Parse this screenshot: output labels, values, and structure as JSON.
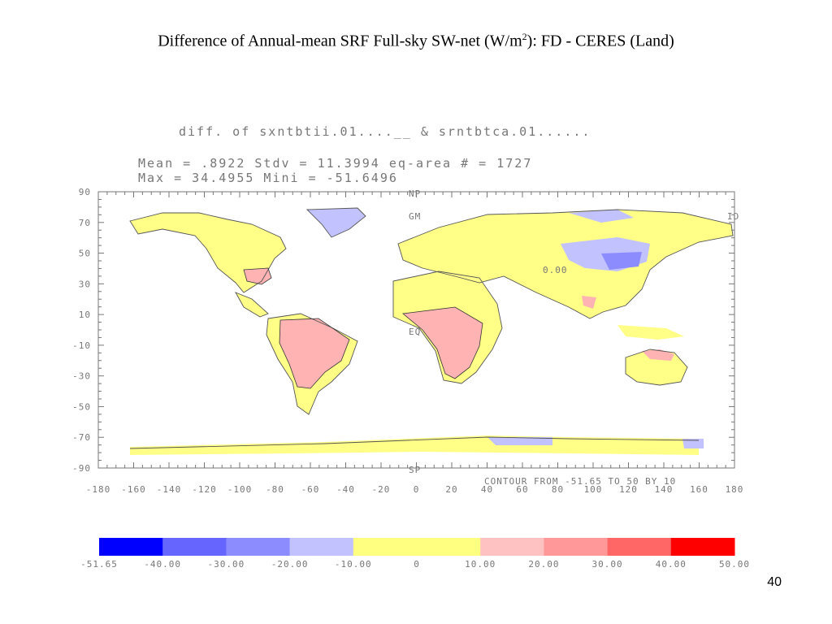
{
  "slide": {
    "title_main": "Difference of Annual-mean SRF Full-sky SW-net (W/m",
    "title_sup": "2",
    "title_tail": "): FD - CERES (Land)",
    "page_number": "40"
  },
  "plot": {
    "header": "diff. of sxntbtii.01....__   & srntbtca.01......",
    "stats_line1": "Mean =      .8922   Stdv =    11.3994   eq-area # =  1727",
    "stats_line2": "Max  =    34.4955                        Mini =   -51.6496",
    "contour_note": "CONTOUR FROM -51.65 TO 50 BY 10",
    "markers": {
      "np": "NP",
      "gm": "GM",
      "id": "ID",
      "eq": "EQ",
      "sp": "SP"
    },
    "inline_label": "0.00"
  },
  "chart_data": {
    "type": "heatmap",
    "map_projection": "equirectangular",
    "x_ticks": [
      "-180",
      "-160",
      "-140",
      "-120",
      "-100",
      "-80",
      "-60",
      "-40",
      "-20",
      "0",
      "20",
      "40",
      "60",
      "80",
      "100",
      "120",
      "140",
      "160",
      "180"
    ],
    "y_ticks": [
      "90",
      "70",
      "50",
      "30",
      "10",
      "-10",
      "-30",
      "-50",
      "-70",
      "-90"
    ],
    "xlim": [
      -180,
      180
    ],
    "ylim": [
      -90,
      90
    ],
    "colorbar": {
      "labels": [
        "-51.65",
        "-40.00",
        "-30.00",
        "-20.00",
        "-10.00",
        "0",
        "10.00",
        "20.00",
        "30.00",
        "40.00",
        "50.00"
      ],
      "colors": [
        "#0000ff",
        "#6666ff",
        "#8c8cff",
        "#c2c2ff",
        "#ffff80",
        "#ffff80",
        "#ffc2c2",
        "#ff9999",
        "#ff6666",
        "#ff0000"
      ]
    },
    "colors": {
      "positive_fill": "#ffb3b3",
      "near_zero_fill": "#ffff88",
      "negative_fill": "#c2c2ff",
      "strong_negative_fill": "#8c8cff"
    }
  }
}
